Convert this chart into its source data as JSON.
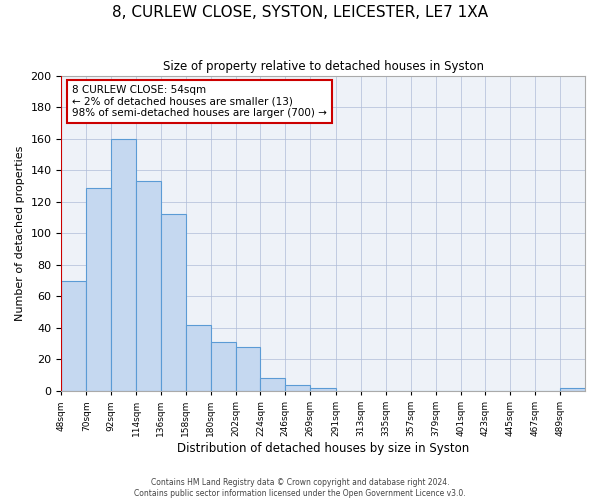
{
  "title": "8, CURLEW CLOSE, SYSTON, LEICESTER, LE7 1XA",
  "subtitle": "Size of property relative to detached houses in Syston",
  "xlabel": "Distribution of detached houses by size in Syston",
  "ylabel": "Number of detached properties",
  "bar_values": [
    70,
    129,
    160,
    133,
    112,
    42,
    31,
    28,
    8,
    4,
    2,
    0,
    0,
    0,
    0,
    0,
    0,
    0,
    0,
    0,
    2
  ],
  "bin_labels": [
    "48sqm",
    "70sqm",
    "92sqm",
    "114sqm",
    "136sqm",
    "158sqm",
    "180sqm",
    "202sqm",
    "224sqm",
    "246sqm",
    "269sqm",
    "291sqm",
    "313sqm",
    "335sqm",
    "357sqm",
    "379sqm",
    "401sqm",
    "423sqm",
    "445sqm",
    "467sqm",
    "489sqm"
  ],
  "bar_color": "#c5d8f0",
  "bar_edge_color": "#5b9bd5",
  "annotation_box_text": "8 CURLEW CLOSE: 54sqm\n← 2% of detached houses are smaller (13)\n98% of semi-detached houses are larger (700) →",
  "annotation_box_color": "#ffffff",
  "annotation_box_edge_color": "#cc0000",
  "vline_x": 37,
  "vline_color": "#cc0000",
  "ylim": [
    0,
    200
  ],
  "yticks": [
    0,
    20,
    40,
    60,
    80,
    100,
    120,
    140,
    160,
    180,
    200
  ],
  "footer_line1": "Contains HM Land Registry data © Crown copyright and database right 2024.",
  "footer_line2": "Contains public sector information licensed under the Open Government Licence v3.0.",
  "bin_edges": [
    37,
    59,
    81,
    103,
    125,
    147,
    169,
    191,
    213,
    235,
    257,
    280,
    302,
    324,
    346,
    368,
    390,
    412,
    434,
    456,
    478,
    500
  ]
}
